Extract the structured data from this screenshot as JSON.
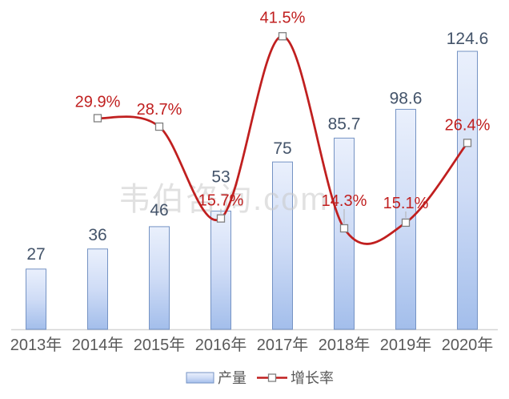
{
  "watermark": {
    "text": "韦伯咨询.com"
  },
  "legend": {
    "bar_label": "产量",
    "line_label": "增长率"
  },
  "colors": {
    "bar_fill_top": "#eaf0fc",
    "bar_fill_mid": "#cfdcf6",
    "bar_fill_bottom": "#a3beeb",
    "bar_border": "#7593c4",
    "line": "#C01F1F",
    "pct_label": "#C01F1F",
    "value_label": "#44546A",
    "tick_label": "#595959",
    "axis_line": "#d6d6d6",
    "marker_fill": "#ffffff",
    "marker_border": "#7f7f7f",
    "leader_line": "#b0b0b0",
    "watermark": "#c9c9c9"
  },
  "chart_data": {
    "type": "bar+line combo",
    "title": "",
    "xlabel": "",
    "ylabel": "",
    "grid": false,
    "legend_position": "bottom",
    "categories": [
      "2013年",
      "2014年",
      "2015年",
      "2016年",
      "2017年",
      "2018年",
      "2019年",
      "2020年"
    ],
    "series": [
      {
        "name": "产量",
        "type": "bar",
        "values": [
          27,
          36,
          46,
          53,
          75,
          85.7,
          98.6,
          124.6
        ],
        "data_labels": [
          "27",
          "36",
          "46",
          "53",
          "75",
          "85.7",
          "98.6",
          "124.6"
        ]
      },
      {
        "name": "增长率",
        "type": "line",
        "unit": "%",
        "smooth": true,
        "marker": "square",
        "values": [
          null,
          29.9,
          28.7,
          15.7,
          41.5,
          14.3,
          15.1,
          26.4
        ],
        "data_labels": [
          "",
          "29.9%",
          "28.7%",
          "15.7%",
          "41.5%",
          "14.3%",
          "15.1%",
          "26.4%"
        ]
      }
    ],
    "axis_ranges": {
      "bar": [
        0,
        144
      ],
      "line_pct": [
        0,
        45.5
      ]
    },
    "layout_hints": {
      "pct_label_dy": [
        0,
        -14,
        -15,
        -16,
        -17,
        -28,
        -18,
        -16
      ],
      "value_label_dy": [
        -12,
        -11,
        -14,
        -36,
        -10,
        -11,
        -7,
        -9
      ],
      "leader_indices": [
        3,
        5,
        6
      ]
    }
  }
}
